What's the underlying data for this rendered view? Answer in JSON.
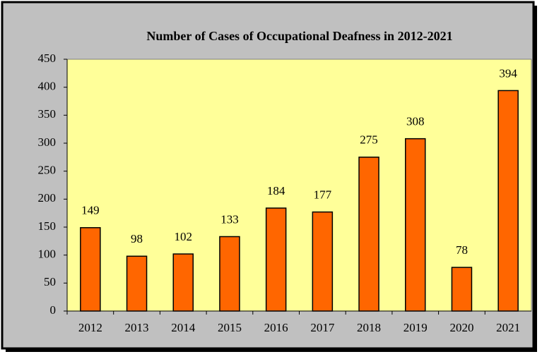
{
  "chart_data": {
    "type": "bar",
    "title": "Number of Cases of Occupational Deafness in 2012-2021",
    "categories": [
      "2012",
      "2013",
      "2014",
      "2015",
      "2016",
      "2017",
      "2018",
      "2019",
      "2020",
      "2021"
    ],
    "values": [
      149,
      98,
      102,
      133,
      184,
      177,
      275,
      308,
      78,
      394
    ],
    "color": "#ff6600",
    "ylim": [
      0,
      450
    ],
    "yticks": [
      0,
      50,
      100,
      150,
      200,
      250,
      300,
      350,
      400,
      450
    ],
    "grid": false
  }
}
